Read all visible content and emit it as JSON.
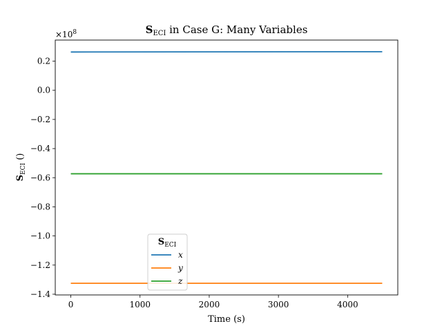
{
  "chart_data": {
    "type": "line",
    "title": {
      "symbol": "S",
      "subscript": "ECI",
      "rest": " in Case G: Many Variables"
    },
    "xlabel": "Time (s)",
    "ylabel": {
      "symbol": "S",
      "subscript": "ECI",
      "rest": " ()"
    },
    "y_multiplier": "×10",
    "y_multiplier_exp": "8",
    "xlim": [
      -225,
      4725
    ],
    "ylim": [
      -1.405,
      0.345
    ],
    "x_ticks": [
      0,
      1000,
      2000,
      3000,
      4000
    ],
    "x_tick_labels": [
      "0",
      "1000",
      "2000",
      "3000",
      "4000"
    ],
    "y_ticks": [
      0.2,
      0.0,
      -0.2,
      -0.4,
      -0.6,
      -0.8,
      -1.0,
      -1.2,
      -1.4
    ],
    "y_tick_labels": [
      "0.2",
      "0.0",
      "−0.2",
      "−0.4",
      "−0.6",
      "−0.8",
      "−1.0",
      "−1.2",
      "−1.4"
    ],
    "grid": false,
    "legend": {
      "placement": "lower center-left",
      "title_symbol": "S",
      "title_subscript": "ECI"
    },
    "series": [
      {
        "name": "x",
        "color": "#1f77b4",
        "x": [
          0,
          4500
        ],
        "y": [
          0.263,
          0.265
        ]
      },
      {
        "name": "y",
        "color": "#ff7f0e",
        "x": [
          0,
          4500
        ],
        "y": [
          -1.325,
          -1.325
        ]
      },
      {
        "name": "z",
        "color": "#2ca02c",
        "x": [
          0,
          4500
        ],
        "y": [
          -0.573,
          -0.573
        ]
      }
    ]
  }
}
